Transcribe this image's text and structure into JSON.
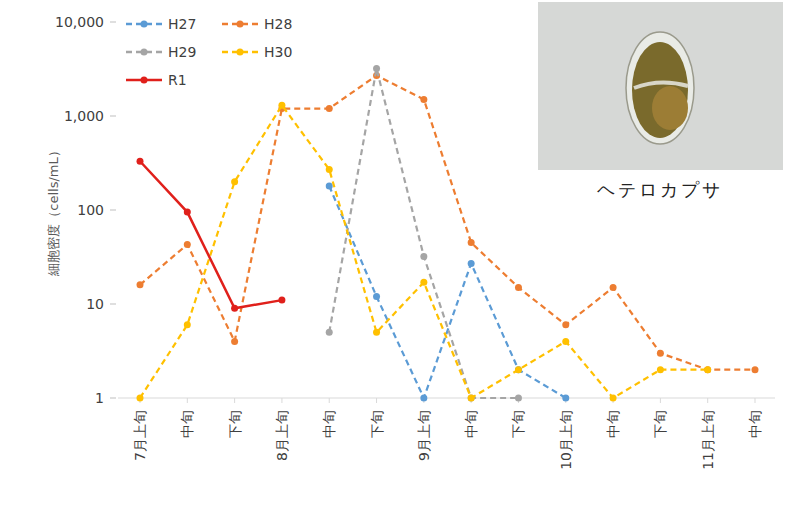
{
  "chart_data": {
    "type": "line",
    "y_label": "細胞密度（cells/mL）",
    "annotations": [
      "ヘテロカプサ"
    ],
    "categories": [
      "7月上旬",
      "中旬",
      "下旬",
      "8月上旬",
      "中旬",
      "下旬",
      "9月上旬",
      "中旬",
      "下旬",
      "10月上旬",
      "中旬",
      "下旬",
      "11月上旬",
      "中旬"
    ],
    "log": "y",
    "ylim": [
      1,
      10000
    ],
    "yticks": [
      1,
      10,
      100,
      {
        "value": 1000,
        "label": "1,000"
      },
      {
        "value": 10000,
        "label": "10,000"
      }
    ],
    "grid": false,
    "legend": "top-left",
    "series": [
      {
        "name": "H27",
        "color": "#5b9bd5",
        "line_style": "dashed",
        "marker": "circle",
        "values": [
          null,
          null,
          null,
          null,
          180,
          12,
          1,
          27,
          2,
          1,
          null,
          null,
          null,
          null
        ]
      },
      {
        "name": "H28",
        "color": "#ed7d31",
        "line_style": "dashed",
        "marker": "circle",
        "values": [
          16,
          43,
          4,
          1200,
          1200,
          2700,
          1500,
          45,
          15,
          6,
          15,
          3,
          2,
          2
        ]
      },
      {
        "name": "H29",
        "color": "#a5a5a5",
        "line_style": "dashed",
        "marker": "circle",
        "values": [
          null,
          null,
          null,
          null,
          5,
          3200,
          32,
          1,
          1,
          null,
          null,
          null,
          null,
          null
        ]
      },
      {
        "name": "H30",
        "color": "#ffc000",
        "line_style": "dashed",
        "marker": "circle",
        "values": [
          1,
          6,
          200,
          1300,
          270,
          5,
          17,
          1,
          2,
          4,
          1,
          2,
          2,
          null
        ]
      },
      {
        "name": "R1",
        "color": "#e0201b",
        "line_style": "solid",
        "marker": "circle",
        "values": [
          330,
          95,
          9,
          11,
          null,
          null,
          null,
          null,
          null,
          null,
          null,
          null,
          null,
          null
        ]
      }
    ]
  }
}
